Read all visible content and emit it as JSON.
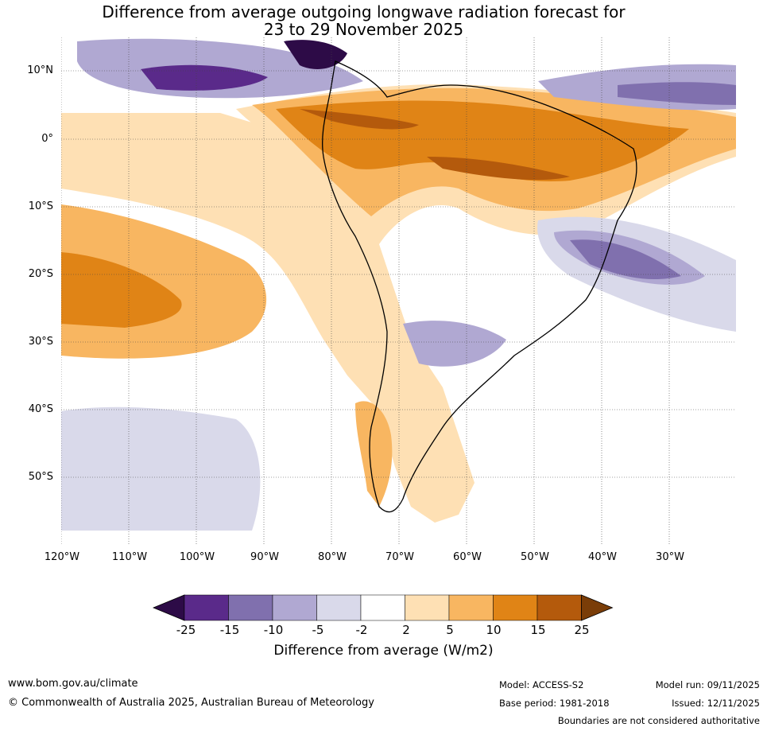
{
  "title": {
    "line1": "Difference from average outgoing longwave radiation forecast for",
    "line2": "23 to 29 November 2025"
  },
  "axes": {
    "lat_labels": [
      "10°N",
      "0°",
      "10°S",
      "20°S",
      "30°S",
      "40°S",
      "50°S"
    ],
    "lon_labels": [
      "120°W",
      "110°W",
      "100°W",
      "90°W",
      "80°W",
      "70°W",
      "60°W",
      "50°W",
      "40°W",
      "30°W"
    ]
  },
  "colorbar": {
    "ticks": [
      "-25",
      "-15",
      "-10",
      "-5",
      "-2",
      "2",
      "5",
      "10",
      "15",
      "25"
    ],
    "label": "Difference from average (W/m2)",
    "colors": [
      "#2d0b47",
      "#5a2a8a",
      "#8070ae",
      "#b0a8d2",
      "#d9d9ea",
      "#ffffff",
      "#fee0b4",
      "#f8b661",
      "#e08416",
      "#b45a0c",
      "#7a3d08"
    ]
  },
  "footer": {
    "website": "www.bom.gov.au/climate",
    "copyright": "© Commonwealth of Australia 2025, Australian Bureau of Meteorology",
    "model": "Model: ACCESS-S2",
    "base_period": "Base period: 1981-2018",
    "model_run": "Model run: 09/11/2025",
    "issued": "Issued: 12/11/2025",
    "disclaimer": "Boundaries are not considered authoritative"
  }
}
